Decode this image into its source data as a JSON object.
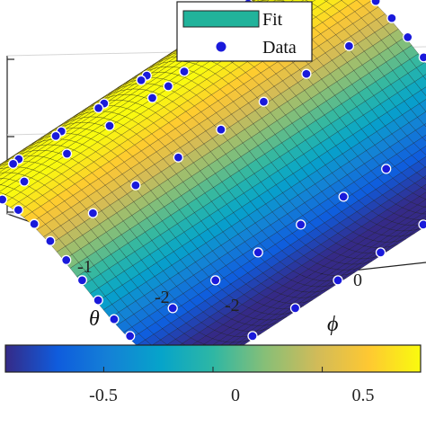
{
  "chart_data": {
    "type": "surface",
    "title": "",
    "legend": [
      {
        "label": "Fit",
        "style": "surface-patch",
        "color": "#21b39b"
      },
      {
        "label": "Data",
        "style": "marker",
        "color": "#1a1adb"
      }
    ],
    "legend_placement": "top-center",
    "axes": {
      "theta": {
        "label": "θ",
        "ticks": [
          "-1",
          "-2"
        ],
        "tick_values": [
          -1,
          -2
        ]
      },
      "phi": {
        "label": "ϕ",
        "ticks": [
          "-2",
          "0"
        ],
        "tick_values": [
          -2,
          0
        ]
      }
    },
    "colorbar": {
      "orientation": "horizontal",
      "colormap": "parula",
      "range": [
        -0.95,
        0.95
      ],
      "tick_labels": [
        "-0.5",
        "0",
        "0.5"
      ],
      "tick_values": [
        -0.5,
        0,
        0.5
      ],
      "colors": [
        "#352a87",
        "#0f5cdd",
        "#1481d6",
        "#06a4ca",
        "#2eb7a4",
        "#87bf77",
        "#d1bb59",
        "#fec832",
        "#f9fb0e"
      ]
    },
    "surface_model": "z = cos(phi)",
    "theta_range": [
      -2.5,
      1.5
    ],
    "phi_range": [
      -2.5,
      3.5
    ],
    "data_grid": {
      "theta_points": 9,
      "phi_points": 26
    },
    "grid": true
  }
}
